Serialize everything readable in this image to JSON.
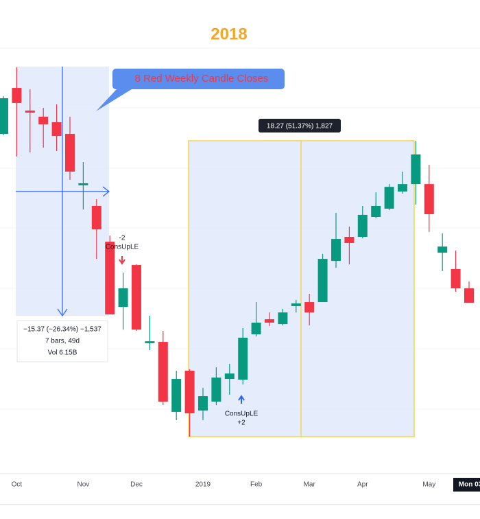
{
  "chart_data": {
    "type": "candlestick",
    "title": "2018",
    "categories": [
      null,
      "Oct",
      null,
      null,
      null,
      null,
      "Nov",
      null,
      null,
      null,
      "Dec",
      null,
      null,
      null,
      null,
      "2019",
      null,
      null,
      null,
      "Feb",
      null,
      null,
      null,
      "Mar",
      null,
      null,
      null,
      "Apr",
      null,
      null,
      null,
      null,
      "May",
      null,
      null,
      "Mon 03"
    ],
    "open": [
      54.27,
      57.11,
      55.71,
      55.33,
      54.99,
      54.27,
      51.09,
      49.82,
      47.61,
      43.58,
      46.17,
      41.34,
      41.42,
      37.1,
      39.64,
      37.18,
      37.73,
      39.13,
      39.09,
      41.89,
      42.82,
      42.52,
      43.63,
      43.88,
      43.88,
      46.42,
      47.91,
      47.91,
      49.14,
      49.65,
      50.71,
      51.17,
      51.17,
      46.93,
      45.92,
      44.73
    ],
    "high": [
      56.6,
      58.38,
      57.02,
      55.88,
      56.09,
      55.33,
      52.53,
      50.24,
      47.99,
      45.7,
      46.21,
      43.03,
      42.1,
      39.64,
      39.73,
      38.58,
      39.85,
      40.06,
      42.27,
      43.88,
      43.24,
      43.46,
      44.01,
      44.39,
      46.85,
      49.39,
      48.54,
      49.82,
      50.66,
      51.17,
      51.94,
      53.84,
      52.36,
      48.12,
      47.06,
      45.15
    ],
    "low": [
      54.18,
      52.87,
      53.12,
      53.42,
      53.21,
      51.43,
      49.6,
      46.55,
      43.12,
      42.18,
      42.1,
      40.91,
      37.52,
      36.59,
      35.57,
      36.59,
      37.52,
      38.16,
      38.79,
      41.76,
      42.4,
      42.44,
      43.24,
      42.44,
      43.88,
      46.0,
      46.21,
      47.82,
      49.05,
      49.56,
      50.58,
      49.9,
      48.21,
      45.79,
      44.52,
      43.84
    ],
    "close": [
      56.47,
      56.18,
      55.58,
      54.86,
      54.14,
      51.94,
      51.22,
      48.37,
      43.12,
      44.73,
      42.18,
      41.46,
      37.73,
      39.13,
      37.01,
      38.07,
      39.22,
      39.47,
      41.68,
      42.61,
      42.61,
      43.24,
      43.8,
      43.24,
      46.55,
      47.78,
      47.53,
      49.27,
      49.82,
      51.0,
      51.17,
      53.0,
      49.31,
      47.31,
      44.73,
      43.84
    ],
    "ylim": [
      33.28,
      62.54
    ],
    "up_color": "#089981",
    "down_color": "#f23645",
    "annotations": {
      "callout": "8 Red Weekly Candle Closes",
      "measure_down": [
        "−15.37 (−26.34%) −1,537",
        "7 bars, 49d",
        "Vol 6.15B"
      ],
      "measure_up": "18.27 (51.37%) 1,827",
      "signal_down": [
        "-2",
        "ConsUpLE"
      ],
      "signal_up": [
        "ConsUpLE",
        "+2"
      ]
    }
  }
}
